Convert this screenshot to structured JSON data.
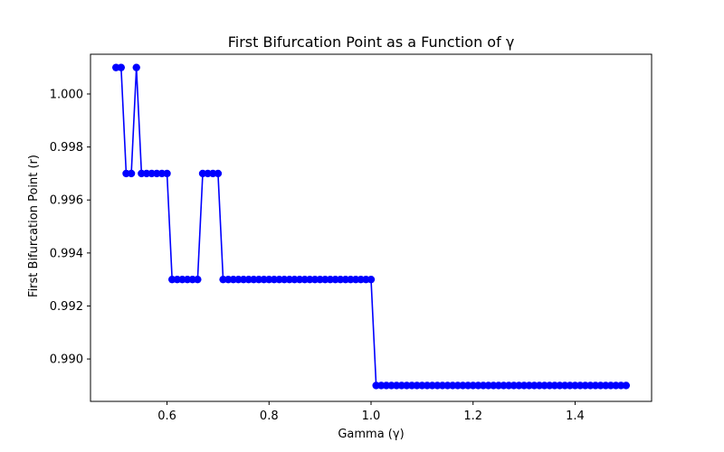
{
  "chart_data": {
    "type": "line",
    "title": "First Bifurcation Point as a Function of γ",
    "xlabel": "Gamma (γ)",
    "ylabel": "First Bifurcation Point (r)",
    "xlim": [
      0.45,
      1.55
    ],
    "ylim": [
      0.9884,
      1.0015
    ],
    "xticks": [
      0.6,
      0.8,
      1.0,
      1.2,
      1.4
    ],
    "xtick_labels": [
      "0.6",
      "0.8",
      "1.0",
      "1.2",
      "1.4"
    ],
    "yticks": [
      0.99,
      0.992,
      0.994,
      0.996,
      0.998,
      1.0
    ],
    "ytick_labels": [
      "0.990",
      "0.992",
      "0.994",
      "0.996",
      "0.998",
      "1.000"
    ],
    "grid": false,
    "series": [
      {
        "color": "#0000ff",
        "marker": "circle",
        "x": [
          0.5,
          0.51,
          0.52,
          0.53,
          0.54,
          0.55,
          0.56,
          0.57,
          0.58,
          0.59,
          0.6,
          0.61,
          0.62,
          0.63,
          0.64,
          0.65,
          0.66,
          0.67,
          0.68,
          0.69,
          0.7,
          0.71,
          0.72,
          0.73,
          0.74,
          0.75,
          0.76,
          0.77,
          0.78,
          0.79,
          0.8,
          0.81,
          0.82,
          0.83,
          0.84,
          0.85,
          0.86,
          0.87,
          0.88,
          0.89,
          0.9,
          0.91,
          0.92,
          0.93,
          0.94,
          0.95,
          0.96,
          0.97,
          0.98,
          0.99,
          1.0,
          1.01,
          1.02,
          1.03,
          1.04,
          1.05,
          1.06,
          1.07,
          1.08,
          1.09,
          1.1,
          1.11,
          1.12,
          1.13,
          1.14,
          1.15,
          1.16,
          1.17,
          1.18,
          1.19,
          1.2,
          1.21,
          1.22,
          1.23,
          1.24,
          1.25,
          1.26,
          1.27,
          1.28,
          1.29,
          1.3,
          1.31,
          1.32,
          1.33,
          1.34,
          1.35,
          1.36,
          1.37,
          1.38,
          1.39,
          1.4,
          1.41,
          1.42,
          1.43,
          1.44,
          1.45,
          1.46,
          1.47,
          1.48,
          1.49,
          1.5
        ],
        "y": [
          1.001,
          1.001,
          0.997,
          0.997,
          1.001,
          0.997,
          0.997,
          0.997,
          0.997,
          0.997,
          0.997,
          0.993,
          0.993,
          0.993,
          0.993,
          0.993,
          0.993,
          0.997,
          0.997,
          0.997,
          0.997,
          0.993,
          0.993,
          0.993,
          0.993,
          0.993,
          0.993,
          0.993,
          0.993,
          0.993,
          0.993,
          0.993,
          0.993,
          0.993,
          0.993,
          0.993,
          0.993,
          0.993,
          0.993,
          0.993,
          0.993,
          0.993,
          0.993,
          0.993,
          0.993,
          0.993,
          0.993,
          0.993,
          0.993,
          0.993,
          0.993,
          0.989,
          0.989,
          0.989,
          0.989,
          0.989,
          0.989,
          0.989,
          0.989,
          0.989,
          0.989,
          0.989,
          0.989,
          0.989,
          0.989,
          0.989,
          0.989,
          0.989,
          0.989,
          0.989,
          0.989,
          0.989,
          0.989,
          0.989,
          0.989,
          0.989,
          0.989,
          0.989,
          0.989,
          0.989,
          0.989,
          0.989,
          0.989,
          0.989,
          0.989,
          0.989,
          0.989,
          0.989,
          0.989,
          0.989,
          0.989,
          0.989,
          0.989,
          0.989,
          0.989,
          0.989,
          0.989,
          0.989,
          0.989,
          0.989,
          0.989
        ]
      }
    ]
  }
}
